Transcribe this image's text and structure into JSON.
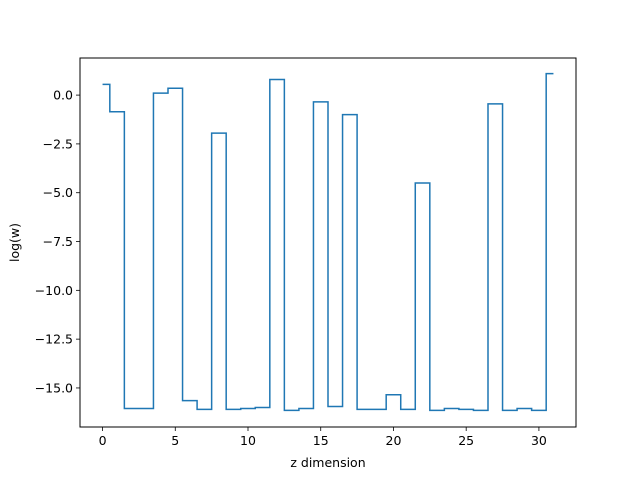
{
  "chart_data": {
    "type": "line",
    "drawstyle": "steps-mid",
    "title": "",
    "xlabel": "z dimension",
    "ylabel": "log(w)",
    "xlim": [
      -1.55,
      32.55
    ],
    "ylim": [
      -17.0,
      1.9
    ],
    "xticks": [
      0,
      5,
      10,
      15,
      20,
      25,
      30
    ],
    "yticks": [
      0.0,
      -2.5,
      -5.0,
      -7.5,
      -10.0,
      -12.5,
      -15.0
    ],
    "ytick_labels": [
      "0.0",
      "−2.5",
      "−5.0",
      "−7.5",
      "−10.0",
      "−12.5",
      "−15.0"
    ],
    "grid": false,
    "line_color": "#1f77b4",
    "series": [
      {
        "x": [
          0,
          1,
          2,
          3,
          4,
          5,
          6,
          7,
          8,
          9,
          10,
          11,
          12,
          13,
          14,
          15,
          16,
          17,
          18,
          19,
          20,
          21,
          22,
          23,
          24,
          25,
          26,
          27,
          28,
          29,
          30,
          31
        ],
        "y": [
          0.55,
          -0.85,
          -16.05,
          -16.05,
          0.1,
          0.35,
          -15.65,
          -16.1,
          -1.95,
          -16.1,
          -16.05,
          -16.0,
          0.8,
          -16.15,
          -16.05,
          -0.35,
          -15.95,
          -1.0,
          -16.1,
          -16.1,
          -15.35,
          -16.1,
          -4.5,
          -16.15,
          -16.05,
          -16.1,
          -16.15,
          -0.45,
          -16.15,
          -16.05,
          -16.15,
          1.1
        ]
      }
    ]
  }
}
